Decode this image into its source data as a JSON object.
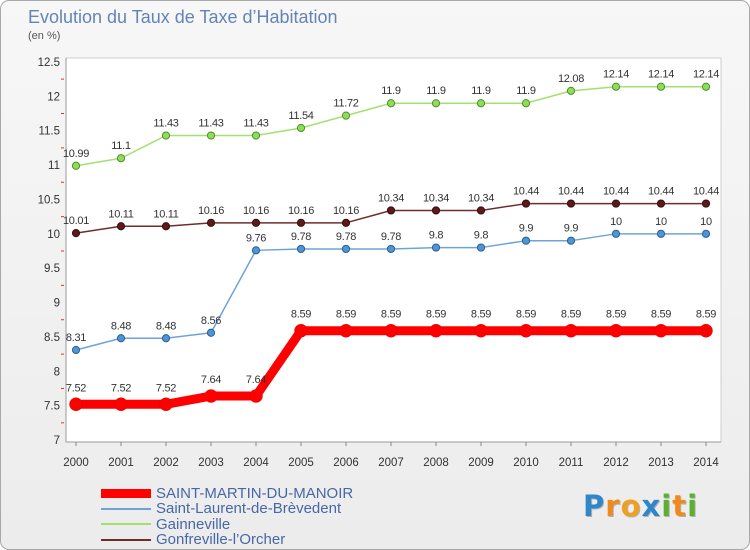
{
  "chart_data": {
    "type": "line",
    "title": "Evolution du Taux de Taxe d’Habitation",
    "subtitle": "(en %)",
    "xlabel": "",
    "ylabel": "",
    "categories": [
      "2000",
      "2001",
      "2002",
      "2003",
      "2004",
      "2005",
      "2006",
      "2007",
      "2008",
      "2009",
      "2010",
      "2011",
      "2012",
      "2013",
      "2014"
    ],
    "yticks": [
      7,
      7.5,
      8,
      8.5,
      9,
      9.5,
      10,
      10.5,
      11,
      11.5,
      12,
      12.5
    ],
    "ylim": [
      7,
      12.5
    ],
    "grid": false,
    "data_labels": true,
    "legend_position": "bottom-left",
    "series": [
      {
        "name": "SAINT-MARTIN-DU-MANOIR",
        "color": "#ff0000",
        "marker_color": "#ff0000",
        "marker_stroke": "#e00000",
        "values": [
          7.52,
          7.52,
          7.52,
          7.64,
          7.64,
          8.59,
          8.59,
          8.59,
          8.59,
          8.59,
          8.59,
          8.59,
          8.59,
          8.59,
          8.59
        ]
      },
      {
        "name": "Saint-Laurent-de-Brèvedent",
        "color": "#6fa3d8",
        "marker_color": "#4f95d6",
        "marker_stroke": "#2c5f94",
        "values": [
          8.31,
          8.48,
          8.48,
          8.56,
          9.76,
          9.78,
          9.78,
          9.78,
          9.8,
          9.8,
          9.9,
          9.9,
          10,
          10,
          10
        ]
      },
      {
        "name": "Gainneville",
        "color": "#a3e070",
        "marker_color": "#8fdc5a",
        "marker_stroke": "#4f8f2b",
        "values": [
          10.99,
          11.1,
          11.43,
          11.43,
          11.43,
          11.54,
          11.72,
          11.9,
          11.9,
          11.9,
          11.9,
          12.08,
          12.14,
          12.14,
          12.14
        ]
      },
      {
        "name": "Gonfreville-l’Orcher",
        "color": "#6e2e2e",
        "marker_color": "#5c1a1a",
        "marker_stroke": "#3a0e0e",
        "values": [
          10.01,
          10.11,
          10.11,
          10.16,
          10.16,
          10.16,
          10.16,
          10.34,
          10.34,
          10.34,
          10.44,
          10.44,
          10.44,
          10.44,
          10.44
        ]
      }
    ]
  },
  "logo": {
    "text": "Proxiti",
    "letter_colors": [
      "#2f86c8",
      "#f08a1c",
      "#f0a020",
      "#2f86c8",
      "#5bb030",
      "#f08a1c",
      "#5bb030"
    ]
  }
}
